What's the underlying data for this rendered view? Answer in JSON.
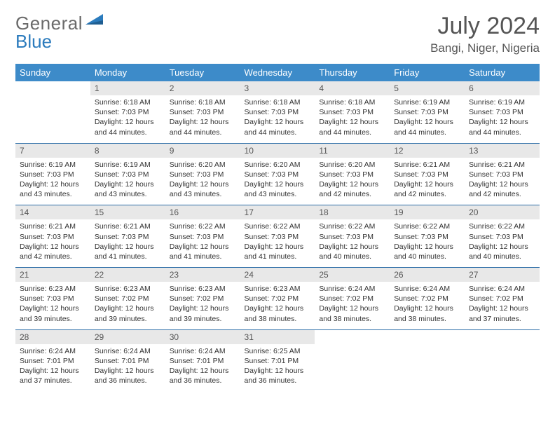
{
  "brand": {
    "part1": "General",
    "part2": "Blue"
  },
  "title": "July 2024",
  "location": "Bangi, Niger, Nigeria",
  "colors": {
    "header_bg": "#3d8bc9",
    "header_text": "#ffffff",
    "row_divider": "#2f6fa8",
    "daynum_bg": "#e8e8e8",
    "text": "#333333",
    "title_text": "#555555"
  },
  "day_headers": [
    "Sunday",
    "Monday",
    "Tuesday",
    "Wednesday",
    "Thursday",
    "Friday",
    "Saturday"
  ],
  "weeks": [
    [
      {
        "empty": true
      },
      {
        "n": "1",
        "sr": "6:18 AM",
        "ss": "7:03 PM",
        "dl": "12 hours and 44 minutes."
      },
      {
        "n": "2",
        "sr": "6:18 AM",
        "ss": "7:03 PM",
        "dl": "12 hours and 44 minutes."
      },
      {
        "n": "3",
        "sr": "6:18 AM",
        "ss": "7:03 PM",
        "dl": "12 hours and 44 minutes."
      },
      {
        "n": "4",
        "sr": "6:18 AM",
        "ss": "7:03 PM",
        "dl": "12 hours and 44 minutes."
      },
      {
        "n": "5",
        "sr": "6:19 AM",
        "ss": "7:03 PM",
        "dl": "12 hours and 44 minutes."
      },
      {
        "n": "6",
        "sr": "6:19 AM",
        "ss": "7:03 PM",
        "dl": "12 hours and 44 minutes."
      }
    ],
    [
      {
        "n": "7",
        "sr": "6:19 AM",
        "ss": "7:03 PM",
        "dl": "12 hours and 43 minutes."
      },
      {
        "n": "8",
        "sr": "6:19 AM",
        "ss": "7:03 PM",
        "dl": "12 hours and 43 minutes."
      },
      {
        "n": "9",
        "sr": "6:20 AM",
        "ss": "7:03 PM",
        "dl": "12 hours and 43 minutes."
      },
      {
        "n": "10",
        "sr": "6:20 AM",
        "ss": "7:03 PM",
        "dl": "12 hours and 43 minutes."
      },
      {
        "n": "11",
        "sr": "6:20 AM",
        "ss": "7:03 PM",
        "dl": "12 hours and 42 minutes."
      },
      {
        "n": "12",
        "sr": "6:21 AM",
        "ss": "7:03 PM",
        "dl": "12 hours and 42 minutes."
      },
      {
        "n": "13",
        "sr": "6:21 AM",
        "ss": "7:03 PM",
        "dl": "12 hours and 42 minutes."
      }
    ],
    [
      {
        "n": "14",
        "sr": "6:21 AM",
        "ss": "7:03 PM",
        "dl": "12 hours and 42 minutes."
      },
      {
        "n": "15",
        "sr": "6:21 AM",
        "ss": "7:03 PM",
        "dl": "12 hours and 41 minutes."
      },
      {
        "n": "16",
        "sr": "6:22 AM",
        "ss": "7:03 PM",
        "dl": "12 hours and 41 minutes."
      },
      {
        "n": "17",
        "sr": "6:22 AM",
        "ss": "7:03 PM",
        "dl": "12 hours and 41 minutes."
      },
      {
        "n": "18",
        "sr": "6:22 AM",
        "ss": "7:03 PM",
        "dl": "12 hours and 40 minutes."
      },
      {
        "n": "19",
        "sr": "6:22 AM",
        "ss": "7:03 PM",
        "dl": "12 hours and 40 minutes."
      },
      {
        "n": "20",
        "sr": "6:22 AM",
        "ss": "7:03 PM",
        "dl": "12 hours and 40 minutes."
      }
    ],
    [
      {
        "n": "21",
        "sr": "6:23 AM",
        "ss": "7:03 PM",
        "dl": "12 hours and 39 minutes."
      },
      {
        "n": "22",
        "sr": "6:23 AM",
        "ss": "7:02 PM",
        "dl": "12 hours and 39 minutes."
      },
      {
        "n": "23",
        "sr": "6:23 AM",
        "ss": "7:02 PM",
        "dl": "12 hours and 39 minutes."
      },
      {
        "n": "24",
        "sr": "6:23 AM",
        "ss": "7:02 PM",
        "dl": "12 hours and 38 minutes."
      },
      {
        "n": "25",
        "sr": "6:24 AM",
        "ss": "7:02 PM",
        "dl": "12 hours and 38 minutes."
      },
      {
        "n": "26",
        "sr": "6:24 AM",
        "ss": "7:02 PM",
        "dl": "12 hours and 38 minutes."
      },
      {
        "n": "27",
        "sr": "6:24 AM",
        "ss": "7:02 PM",
        "dl": "12 hours and 37 minutes."
      }
    ],
    [
      {
        "n": "28",
        "sr": "6:24 AM",
        "ss": "7:01 PM",
        "dl": "12 hours and 37 minutes."
      },
      {
        "n": "29",
        "sr": "6:24 AM",
        "ss": "7:01 PM",
        "dl": "12 hours and 36 minutes."
      },
      {
        "n": "30",
        "sr": "6:24 AM",
        "ss": "7:01 PM",
        "dl": "12 hours and 36 minutes."
      },
      {
        "n": "31",
        "sr": "6:25 AM",
        "ss": "7:01 PM",
        "dl": "12 hours and 36 minutes."
      },
      {
        "empty": true
      },
      {
        "empty": true
      },
      {
        "empty": true
      }
    ]
  ],
  "labels": {
    "sunrise": "Sunrise:",
    "sunset": "Sunset:",
    "daylight": "Daylight:"
  }
}
